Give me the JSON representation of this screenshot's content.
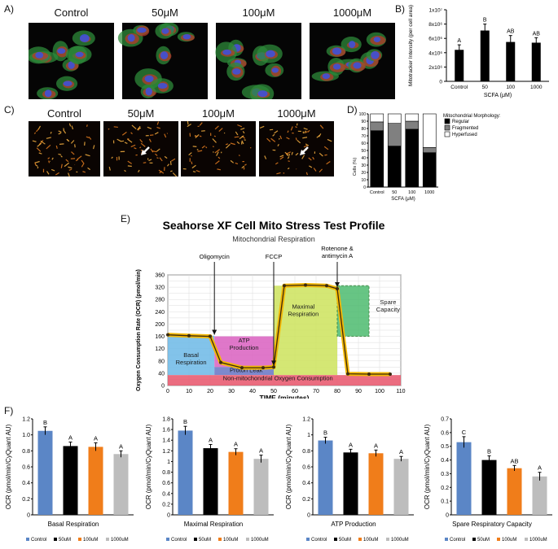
{
  "panel_labels": {
    "a": "A)",
    "b": "B)",
    "c": "C)",
    "d": "D)",
    "e": "E)",
    "f": "F)"
  },
  "panel_a": {
    "titles": [
      "Control",
      "50μM",
      "100μM",
      "1000μM"
    ]
  },
  "panel_c": {
    "titles": [
      "Control",
      "50μM",
      "100μM",
      "1000μM"
    ]
  },
  "chart_data": [
    {
      "id": "panel-b",
      "type": "bar",
      "categories": [
        "Control",
        "50",
        "100",
        "1000"
      ],
      "values": [
        4400000,
        7100000,
        5500000,
        5400000
      ],
      "errors": [
        700000,
        900000,
        900000,
        700000
      ],
      "letters": [
        "A",
        "B",
        "AB",
        "AB"
      ],
      "ylabel": "Mitotracker Intensity (per cell area)",
      "xlabel": "SCFA (μM)",
      "ylim": [
        0,
        10000000
      ],
      "yticks": [
        0,
        2000000,
        4000000,
        6000000,
        8000000,
        10000000
      ],
      "ytick_labels": [
        "0",
        "2x10⁶",
        "4x10⁶",
        "6x10⁶",
        "8x10⁶",
        "1x10⁷"
      ],
      "colors": [
        "#000000"
      ]
    },
    {
      "id": "panel-d",
      "type": "bar",
      "stacked": true,
      "categories": [
        "Control",
        "50",
        "100",
        "1000"
      ],
      "series": [
        {
          "name": "Regular",
          "values": [
            77,
            56,
            79,
            47
          ],
          "color": "#000000"
        },
        {
          "name": "Fragmented",
          "values": [
            12,
            31,
            11,
            7
          ],
          "color": "#808080"
        },
        {
          "name": "Hyperfused",
          "values": [
            11,
            13,
            10,
            46
          ],
          "color": "#ffffff"
        }
      ],
      "legend_title": "Mitochondrial Morphology:",
      "ylabel": "Cells (%)",
      "xlabel": "SCFA (μM)",
      "ylim": [
        0,
        100
      ],
      "yticks": [
        0,
        10,
        20,
        30,
        40,
        50,
        60,
        70,
        80,
        90,
        100
      ]
    },
    {
      "id": "panel-e",
      "type": "line",
      "title": "Seahorse XF Cell Mito Stress Test Profile",
      "subtitle": "Mitochondrial Respiration",
      "xlabel": "TIME (minutes)",
      "ylabel": "Oxygen Consumption Rate (OCR) (pmol/min)",
      "xlim": [
        0,
        110
      ],
      "ylim": [
        0,
        360
      ],
      "xticks": [
        0,
        10,
        20,
        30,
        40,
        50,
        60,
        70,
        80,
        90,
        100,
        110
      ],
      "yticks": [
        0,
        20,
        40,
        60,
        80,
        100,
        120,
        140,
        160,
        180,
        200,
        220,
        240,
        260,
        280,
        300,
        320,
        340,
        360
      ],
      "x": [
        0,
        10,
        20,
        25,
        35,
        45,
        50,
        55,
        65,
        75,
        80,
        85,
        95,
        105
      ],
      "y": [
        165,
        162,
        160,
        75,
        58,
        58,
        60,
        325,
        327,
        325,
        315,
        38,
        37,
        37
      ],
      "regions": [
        {
          "name": "Basal Respiration",
          "x": [
            0,
            22
          ],
          "y": [
            34,
            162
          ],
          "color": "#6cb8e6"
        },
        {
          "name": "ATP Production",
          "x": [
            22,
            50
          ],
          "y": [
            60,
            160
          ],
          "color": "#d95fbf"
        },
        {
          "name": "Proton Leak",
          "x": [
            22,
            50
          ],
          "y": [
            34,
            60
          ],
          "color": "#6674c4"
        },
        {
          "name": "Maximal Respiration",
          "x": [
            50,
            80
          ],
          "y": [
            34,
            325
          ],
          "color": "#cce35c"
        },
        {
          "name": "Spare Capacity",
          "x": [
            80,
            95
          ],
          "y": [
            160,
            325
          ],
          "color": "#4dbb6f"
        },
        {
          "name": "Non-mitochondrial Oxygen Consumption",
          "x": [
            0,
            110
          ],
          "y": [
            0,
            34
          ],
          "color": "#e8546a"
        }
      ],
      "injections": [
        {
          "label": "Oligomycin",
          "x": 22
        },
        {
          "label": "FCCP",
          "x": 50
        },
        {
          "label": "Rotenone & antimycin A",
          "x": 80
        }
      ]
    },
    {
      "id": "panel-f1",
      "type": "bar",
      "title": "Basal Respiration",
      "categories": [
        "Control",
        "50uM",
        "100uM",
        "1000uM"
      ],
      "values": [
        1.05,
        0.86,
        0.85,
        0.76
      ],
      "errors": [
        0.05,
        0.05,
        0.05,
        0.04
      ],
      "letters": [
        "B",
        "A",
        "A",
        "A"
      ],
      "ylabel": "OCR (pmol/min/CyQuant AU)",
      "ylim": [
        0,
        1.2
      ],
      "yticks": [
        0,
        0.2,
        0.4,
        0.6,
        0.8,
        1.0,
        1.2
      ],
      "ytick_labels": [
        "0",
        "0.2",
        "0.4",
        "0.6",
        "0.8",
        "1.0",
        "1.2"
      ]
    },
    {
      "id": "panel-f2",
      "type": "bar",
      "title": "Maximal Respiration",
      "categories": [
        "Control",
        "50uM",
        "100uM",
        "1000uM"
      ],
      "values": [
        1.58,
        1.25,
        1.18,
        1.05
      ],
      "errors": [
        0.08,
        0.07,
        0.06,
        0.07
      ],
      "letters": [
        "B",
        "A",
        "A",
        "A"
      ],
      "ylabel": "OCR (pmol/min/CyQuant AU)",
      "ylim": [
        0,
        1.8
      ],
      "yticks": [
        0,
        0.2,
        0.4,
        0.6,
        0.8,
        1.0,
        1.2,
        1.4,
        1.6,
        1.8
      ],
      "ytick_labels": [
        "0",
        "0.2",
        "0.4",
        "0.6",
        "0.8",
        "1",
        "1.2",
        "1.4",
        "1.6",
        "1.8"
      ]
    },
    {
      "id": "panel-f3",
      "type": "bar",
      "title": "ATP Production",
      "categories": [
        "Control",
        "50uM",
        "100uM",
        "1000uM"
      ],
      "values": [
        0.93,
        0.78,
        0.77,
        0.7
      ],
      "errors": [
        0.04,
        0.04,
        0.04,
        0.03
      ],
      "letters": [
        "B",
        "A",
        "A",
        "A"
      ],
      "ylabel": "OCR (pmol/min/CyQuant AU)",
      "ylim": [
        0,
        1.2
      ],
      "yticks": [
        0,
        0.2,
        0.4,
        0.6,
        0.8,
        1.0,
        1.2
      ],
      "ytick_labels": [
        "0",
        "0.2",
        "0.4",
        "0.6",
        "0.8",
        "1",
        "1.2"
      ]
    },
    {
      "id": "panel-f4",
      "type": "bar",
      "title": "Spare Respiratory Capacity",
      "categories": [
        "Control",
        "50uM",
        "100uM",
        "1000uM"
      ],
      "values": [
        0.53,
        0.4,
        0.34,
        0.28
      ],
      "errors": [
        0.04,
        0.03,
        0.02,
        0.03
      ],
      "letters": [
        "C",
        "B",
        "AB",
        "A"
      ],
      "ylabel": "OCR (pmol/min/CyQuant AU)",
      "ylim": [
        0,
        0.7
      ],
      "yticks": [
        0,
        0.1,
        0.2,
        0.3,
        0.4,
        0.5,
        0.6,
        0.7
      ],
      "ytick_labels": [
        "0",
        "0.1",
        "0.2",
        "0.3",
        "0.4",
        "0.5",
        "0.6",
        "0.7"
      ]
    }
  ],
  "f_colors": [
    "#5b86c6",
    "#000000",
    "#f07d1a",
    "#bdbdbd"
  ]
}
